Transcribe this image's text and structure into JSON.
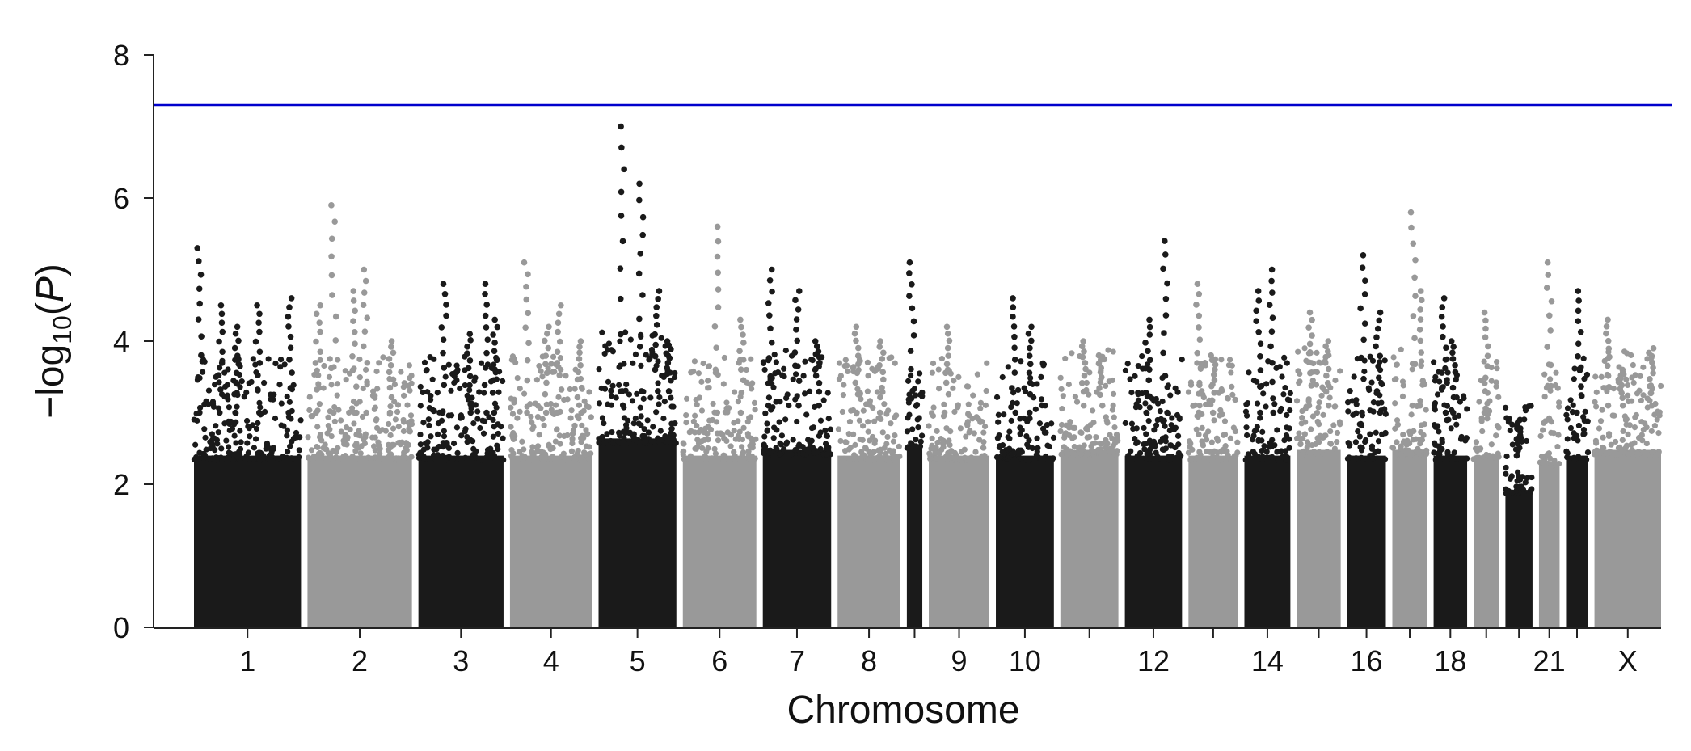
{
  "chart_data": {
    "type": "scatter",
    "subtype": "manhattan",
    "xlabel": "Chromosome",
    "ylabel": "−log",
    "ylabel_subscript": "10",
    "ylabel_arg": "P",
    "ylim": [
      0,
      8
    ],
    "yticks": [
      "0",
      "2",
      "4",
      "6",
      "8"
    ],
    "threshold": {
      "value": 7.3,
      "color": "#0000cc"
    },
    "colors": {
      "dark": "#1a1a1a",
      "light": "#999999"
    },
    "chromosomes": [
      {
        "label": "1",
        "shown": true,
        "length": 249,
        "base": 3.0,
        "peaks": [
          [
            0.05,
            5.3
          ],
          [
            0.25,
            4.5
          ],
          [
            0.6,
            4.5
          ],
          [
            0.4,
            4.2
          ],
          [
            0.9,
            4.6
          ]
        ]
      },
      {
        "label": "2",
        "shown": true,
        "length": 243,
        "base": 3.0,
        "peaks": [
          [
            0.25,
            5.9
          ],
          [
            0.45,
            4.7
          ],
          [
            0.55,
            5.0
          ],
          [
            0.8,
            4.0
          ],
          [
            0.1,
            4.5
          ]
        ]
      },
      {
        "label": "3",
        "shown": true,
        "length": 198,
        "base": 3.0,
        "peaks": [
          [
            0.3,
            4.8
          ],
          [
            0.8,
            4.8
          ],
          [
            0.9,
            4.3
          ],
          [
            0.6,
            4.1
          ]
        ]
      },
      {
        "label": "4",
        "shown": true,
        "length": 191,
        "base": 3.0,
        "peaks": [
          [
            0.2,
            5.1
          ],
          [
            0.45,
            4.2
          ],
          [
            0.6,
            4.5
          ],
          [
            0.85,
            4.0
          ]
        ]
      },
      {
        "label": "5",
        "shown": true,
        "length": 181,
        "base": 3.3,
        "peaks": [
          [
            0.3,
            7.0
          ],
          [
            0.55,
            6.2
          ],
          [
            0.75,
            4.7
          ],
          [
            0.9,
            4.0
          ]
        ]
      },
      {
        "label": "6",
        "shown": true,
        "length": 171,
        "base": 3.0,
        "peaks": [
          [
            0.45,
            5.6
          ],
          [
            0.8,
            4.3
          ]
        ]
      },
      {
        "label": "7",
        "shown": true,
        "length": 159,
        "base": 3.1,
        "peaks": [
          [
            0.1,
            5.0
          ],
          [
            0.5,
            4.7
          ],
          [
            0.8,
            4.0
          ]
        ]
      },
      {
        "label": "8",
        "shown": true,
        "length": 146,
        "base": 3.0,
        "peaks": [
          [
            0.3,
            4.2
          ],
          [
            0.7,
            4.0
          ]
        ]
      },
      {
        "label": "",
        "shown": false,
        "length": 36,
        "base": 3.2,
        "peaks": [
          [
            0.3,
            5.1
          ]
        ]
      },
      {
        "label": "9",
        "shown": true,
        "length": 141,
        "base": 3.0,
        "peaks": [
          [
            0.3,
            4.2
          ]
        ]
      },
      {
        "label": "10",
        "shown": true,
        "length": 135,
        "base": 3.0,
        "peaks": [
          [
            0.3,
            4.6
          ],
          [
            0.6,
            4.2
          ]
        ]
      },
      {
        "label": "",
        "shown": false,
        "length": 135,
        "base": 3.1,
        "peaks": [
          [
            0.4,
            4.0
          ],
          [
            0.7,
            3.8
          ]
        ]
      },
      {
        "label": "12",
        "shown": true,
        "length": 133,
        "base": 3.0,
        "peaks": [
          [
            0.7,
            5.4
          ],
          [
            0.4,
            4.3
          ]
        ]
      },
      {
        "label": "",
        "shown": false,
        "length": 115,
        "base": 3.0,
        "peaks": [
          [
            0.2,
            4.8
          ],
          [
            0.5,
            3.8
          ]
        ]
      },
      {
        "label": "14",
        "shown": true,
        "length": 107,
        "base": 3.0,
        "peaks": [
          [
            0.6,
            5.0
          ],
          [
            0.3,
            4.7
          ]
        ]
      },
      {
        "label": "",
        "shown": false,
        "length": 102,
        "base": 3.1,
        "peaks": [
          [
            0.3,
            4.4
          ],
          [
            0.7,
            4.0
          ]
        ]
      },
      {
        "label": "16",
        "shown": true,
        "length": 90,
        "base": 3.0,
        "peaks": [
          [
            0.4,
            5.2
          ],
          [
            0.8,
            4.4
          ]
        ]
      },
      {
        "label": "",
        "shown": false,
        "length": 81,
        "base": 3.1,
        "peaks": [
          [
            0.6,
            5.8
          ],
          [
            0.85,
            4.7
          ]
        ]
      },
      {
        "label": "18",
        "shown": true,
        "length": 78,
        "base": 3.0,
        "peaks": [
          [
            0.3,
            4.6
          ],
          [
            0.6,
            4.0
          ]
        ]
      },
      {
        "label": "",
        "shown": false,
        "length": 59,
        "base": 3.0,
        "peaks": [
          [
            0.5,
            4.4
          ]
        ]
      },
      {
        "label": "",
        "shown": false,
        "length": 63,
        "base": 2.4,
        "peaks": [
          [
            0.5,
            2.9
          ]
        ]
      },
      {
        "label": "21",
        "shown": true,
        "length": 48,
        "base": 2.9,
        "peaks": [
          [
            0.5,
            5.1
          ]
        ]
      },
      {
        "label": "",
        "shown": false,
        "length": 51,
        "base": 3.0,
        "peaks": [
          [
            0.6,
            4.7
          ]
        ]
      },
      {
        "label": "X",
        "shown": true,
        "length": 155,
        "base": 3.1,
        "peaks": [
          [
            0.2,
            4.3
          ],
          [
            0.4,
            3.6
          ],
          [
            0.85,
            3.9
          ]
        ]
      }
    ]
  }
}
